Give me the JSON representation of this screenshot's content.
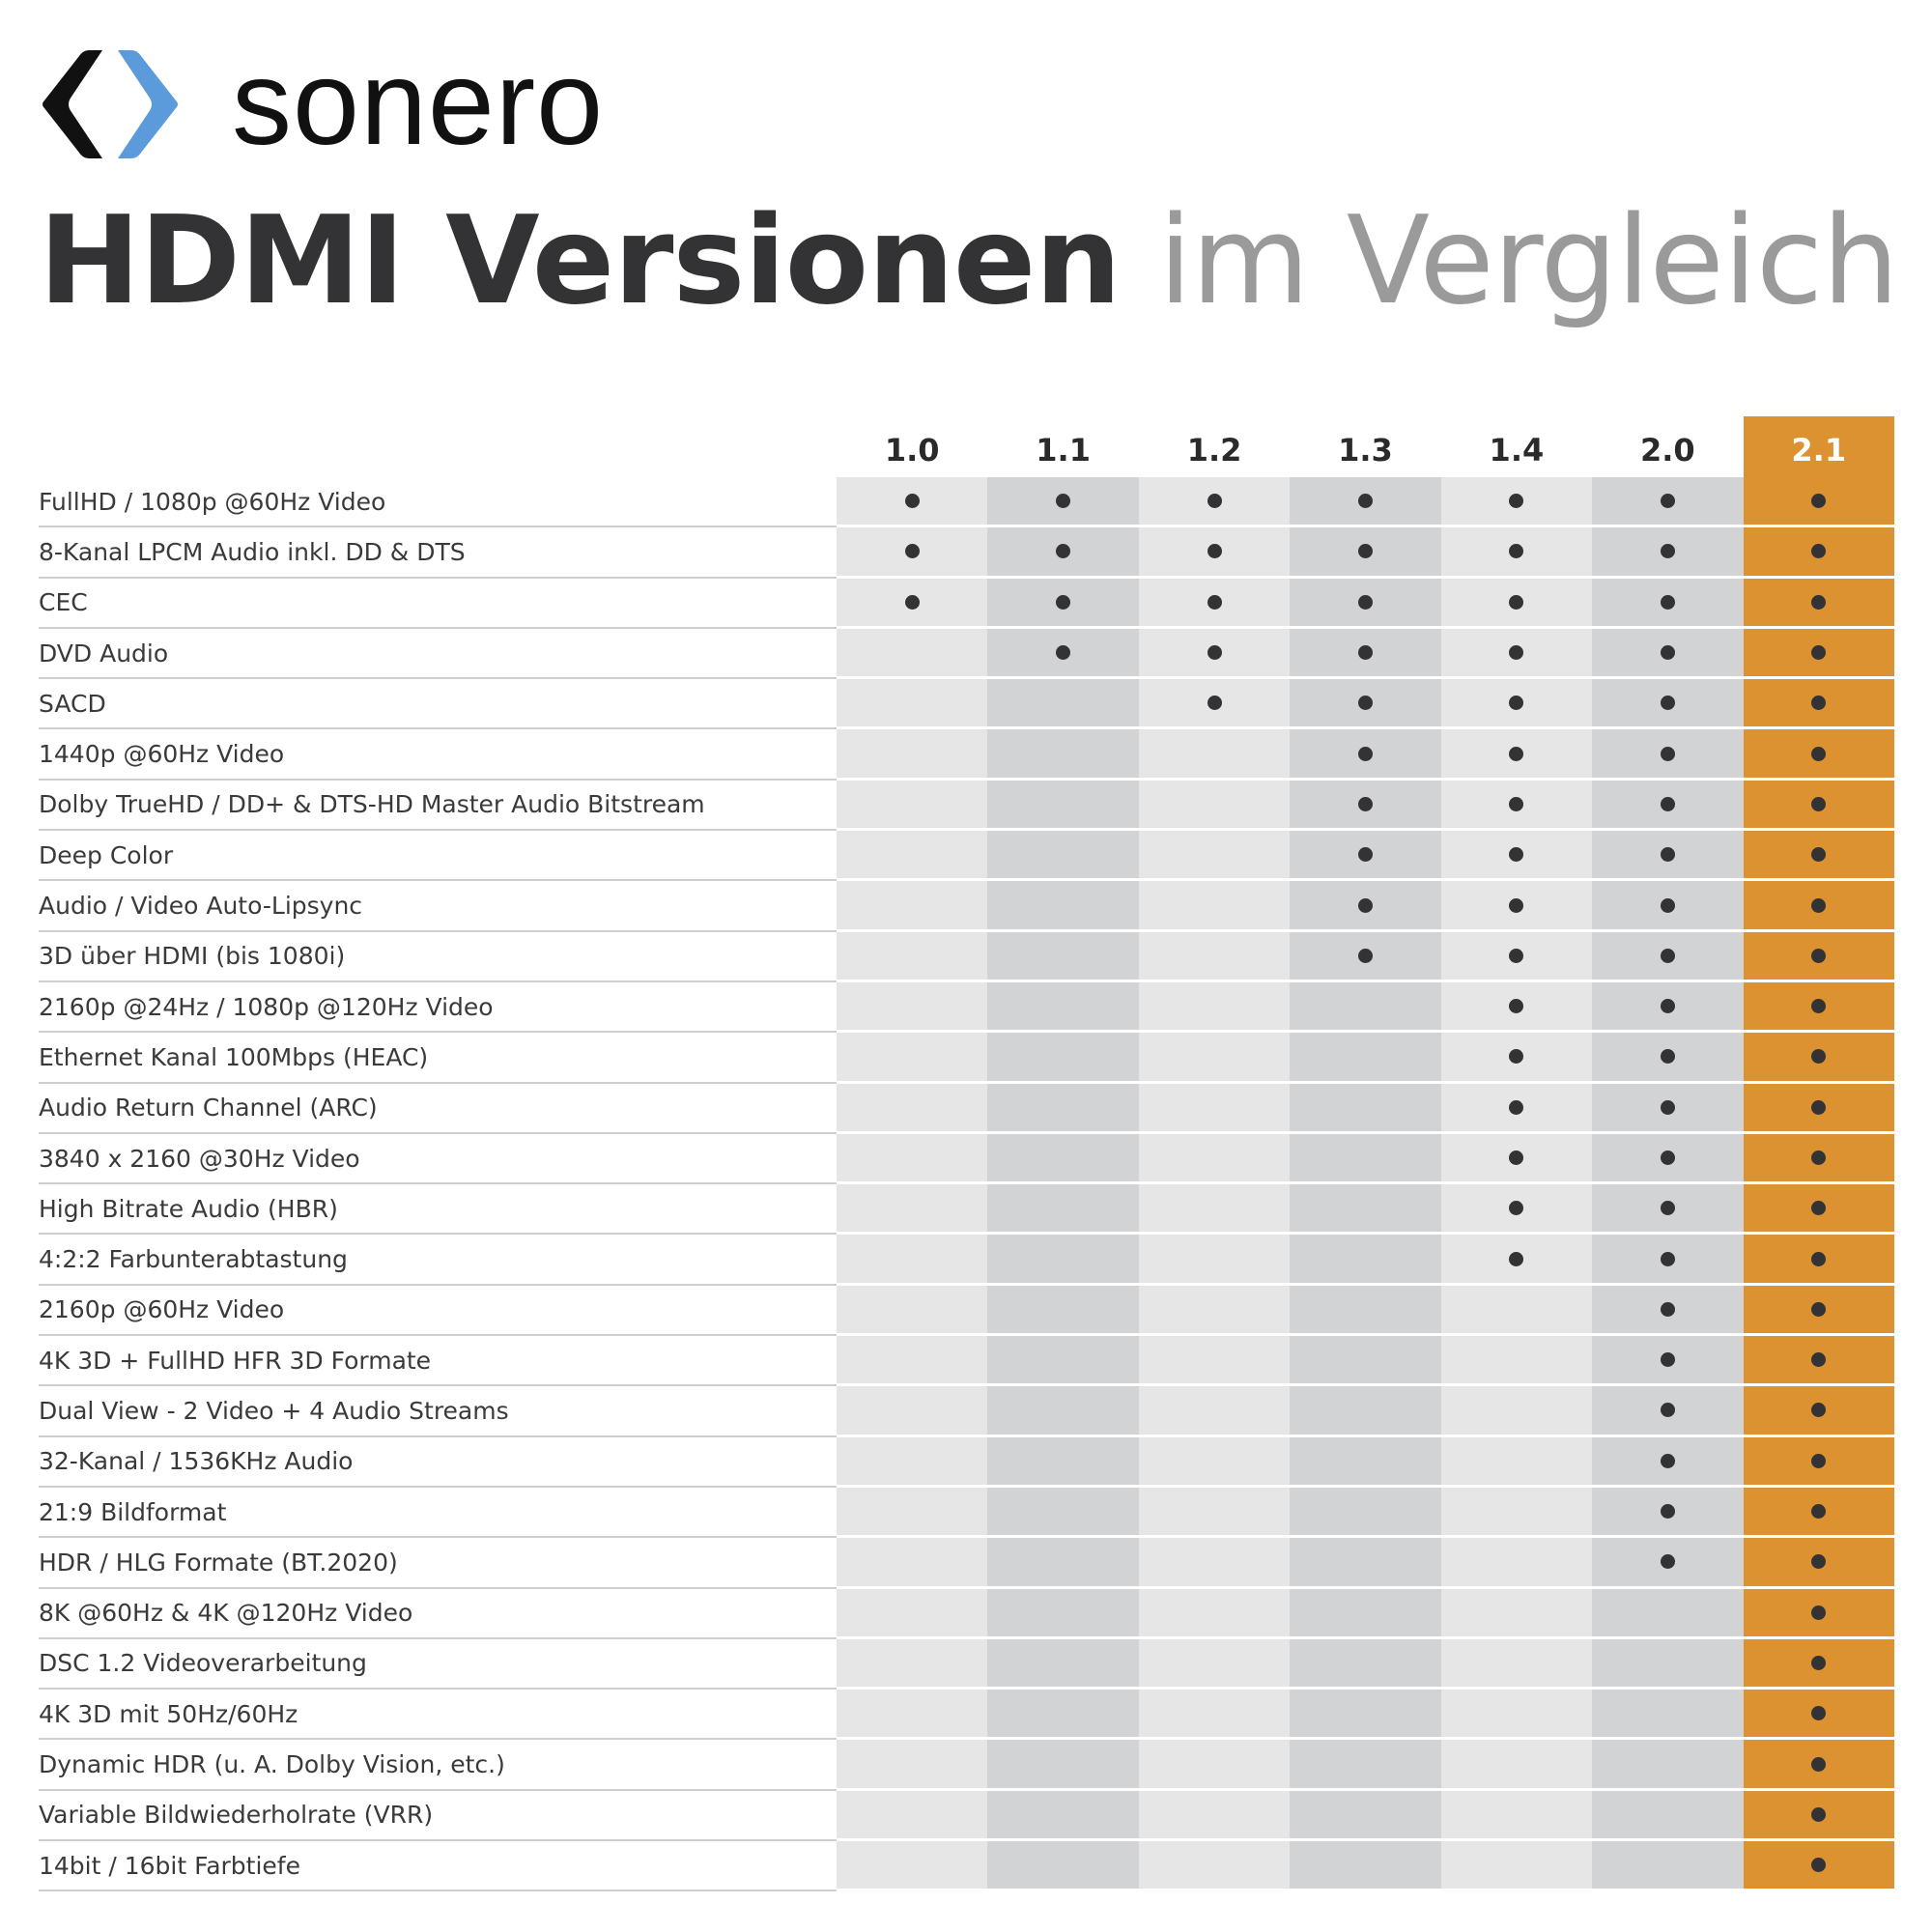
{
  "brand": {
    "name": "sonero",
    "logo_colors": {
      "left": "#111111",
      "right": "#5b9bdc"
    }
  },
  "title": {
    "bold": "HDMI Versionen",
    "light": "im Vergleich"
  },
  "table": {
    "highlight_color": "#dc9230",
    "versions": [
      "1.0",
      "1.1",
      "1.2",
      "1.3",
      "1.4",
      "2.0",
      "2.1"
    ],
    "highlighted_version": "2.1",
    "features": [
      {
        "label": "FullHD / 1080p @60Hz Video",
        "since": "1.0"
      },
      {
        "label": "8-Kanal LPCM Audio inkl. DD & DTS",
        "since": "1.0"
      },
      {
        "label": "CEC",
        "since": "1.0"
      },
      {
        "label": "DVD Audio",
        "since": "1.1"
      },
      {
        "label": "SACD",
        "since": "1.2"
      },
      {
        "label": "1440p @60Hz Video",
        "since": "1.3"
      },
      {
        "label": "Dolby TrueHD / DD+ & DTS-HD Master Audio Bitstream",
        "since": "1.3"
      },
      {
        "label": "Deep Color",
        "since": "1.3"
      },
      {
        "label": "Audio / Video Auto-Lipsync",
        "since": "1.3"
      },
      {
        "label": "3D über HDMI (bis 1080i)",
        "since": "1.3"
      },
      {
        "label": "2160p @24Hz / 1080p @120Hz Video",
        "since": "1.4"
      },
      {
        "label": "Ethernet Kanal 100Mbps (HEAC)",
        "since": "1.4"
      },
      {
        "label": "Audio Return Channel (ARC)",
        "since": "1.4"
      },
      {
        "label": "3840 x 2160 @30Hz Video",
        "since": "1.4"
      },
      {
        "label": "High Bitrate Audio (HBR)",
        "since": "1.4"
      },
      {
        "label": "4:2:2 Farbunterabtastung",
        "since": "1.4"
      },
      {
        "label": "2160p @60Hz Video",
        "since": "2.0"
      },
      {
        "label": "4K 3D + FullHD HFR 3D Formate",
        "since": "2.0"
      },
      {
        "label": "Dual View - 2 Video + 4 Audio Streams",
        "since": "2.0"
      },
      {
        "label": "32-Kanal / 1536KHz Audio",
        "since": "2.0"
      },
      {
        "label": "21:9 Bildformat",
        "since": "2.0"
      },
      {
        "label": "HDR / HLG Formate (BT.2020)",
        "since": "2.0"
      },
      {
        "label": "8K @60Hz & 4K @120Hz Video",
        "since": "2.1"
      },
      {
        "label": "DSC 1.2 Videoverarbeitung",
        "since": "2.1"
      },
      {
        "label": "4K 3D mit 50Hz/60Hz",
        "since": "2.1"
      },
      {
        "label": "Dynamic HDR (u. A. Dolby Vision, etc.)",
        "since": "2.1"
      },
      {
        "label": "Variable Bildwiederholrate (VRR)",
        "since": "2.1"
      },
      {
        "label": "14bit / 16bit Farbtiefe",
        "since": "2.1"
      }
    ]
  }
}
